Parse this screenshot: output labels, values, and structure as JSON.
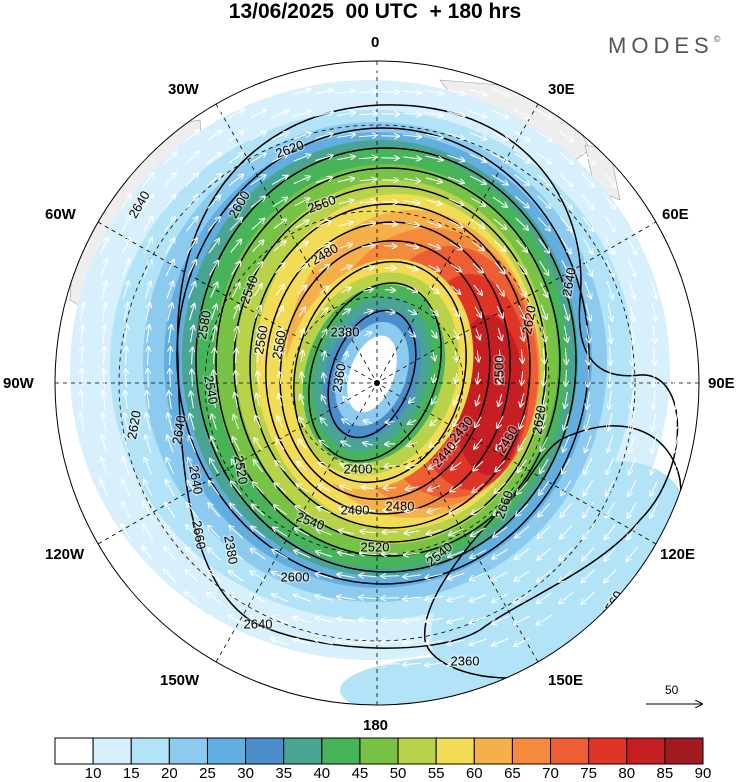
{
  "title": "13/06/2025  00 UTC  + 180 hrs",
  "brand": "MODES",
  "brand_mark": "©",
  "lon_labels": [
    "0",
    "30E",
    "60E",
    "90E",
    "120E",
    "150E",
    "180",
    "150W",
    "120W",
    "90W",
    "60W",
    "30W"
  ],
  "reference_vector": "50",
  "contour_labels": [
    "2620",
    "2640",
    "2600",
    "2560",
    "2540",
    "2480",
    "2580",
    "2560",
    "2380",
    "2360",
    "2540",
    "2520",
    "2560",
    "2500",
    "2440",
    "2400",
    "2430",
    "2460",
    "2540",
    "2400",
    "2480",
    "2520",
    "2540",
    "2600",
    "2640",
    "2660",
    "2620",
    "2640",
    "2660",
    "2360",
    "2380",
    "2640",
    "2620",
    "2620",
    "2560",
    "2640"
  ],
  "colorbar": {
    "ticks": [
      "10",
      "15",
      "20",
      "25",
      "30",
      "35",
      "40",
      "45",
      "50",
      "55",
      "60",
      "65",
      "70",
      "75",
      "80",
      "85",
      "90"
    ],
    "colors": [
      "#ffffff",
      "#d7f0fb",
      "#b2e3f7",
      "#8ccbef",
      "#62aee0",
      "#4a8fc9",
      "#49a592",
      "#48b45a",
      "#78c245",
      "#b8d34a",
      "#f3dc55",
      "#f5b04a",
      "#f38a3c",
      "#ee5e34",
      "#df3527",
      "#c51f24",
      "#a11b21"
    ]
  }
}
